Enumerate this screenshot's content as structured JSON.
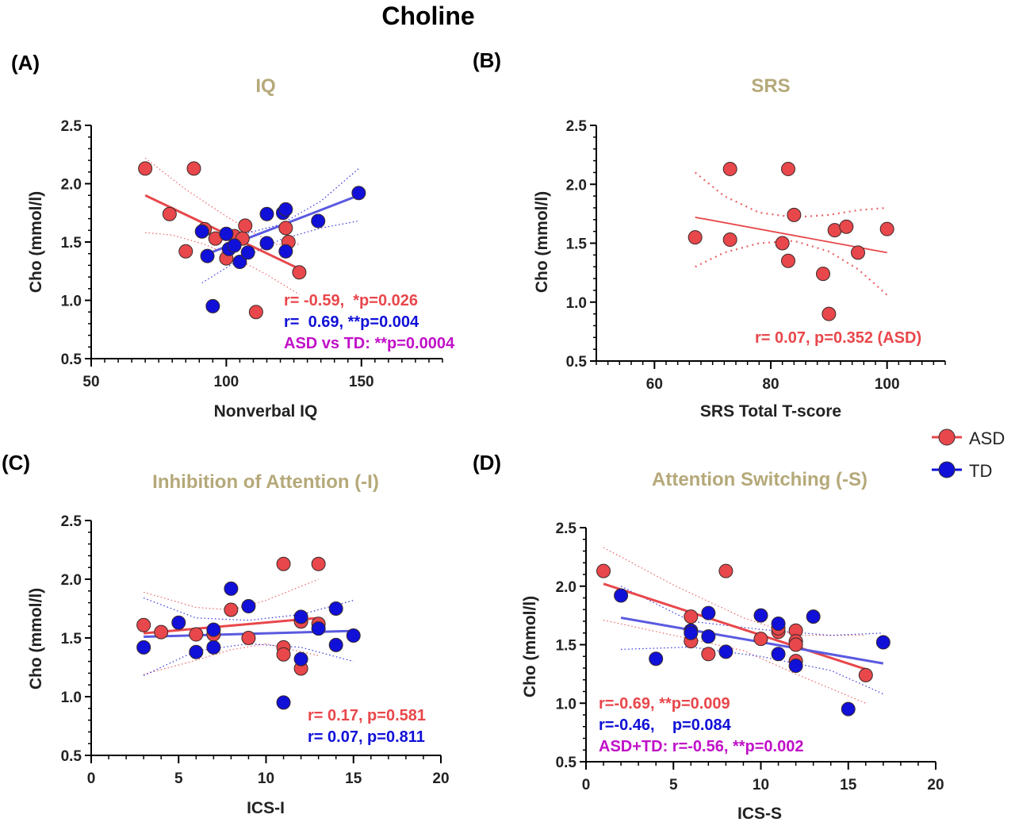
{
  "figure_title": "Choline",
  "colors": {
    "asd": "#e8474b",
    "td": "#1010d8",
    "combined": "#c010c8",
    "panel_title": "#b5a97a"
  },
  "legend": {
    "asd_label": "ASD",
    "td_label": "TD"
  },
  "chart_data": [
    {
      "panel_label": "(A)",
      "type": "scatter",
      "title": "IQ",
      "xlabel": "Nonverbal IQ",
      "ylabel": "Cho (mmol/l)",
      "xlim": [
        50,
        180
      ],
      "ylim": [
        0.5,
        2.5
      ],
      "xticks": [
        50,
        100,
        150
      ],
      "yticks": [
        0.5,
        1.0,
        1.5,
        2.0,
        2.5
      ],
      "x_minor_step": 5,
      "series": [
        {
          "name": "ASD",
          "points": [
            [
              70,
              2.13
            ],
            [
              79,
              1.74
            ],
            [
              85,
              1.42
            ],
            [
              88,
              2.13
            ],
            [
              92,
              1.61
            ],
            [
              96,
              1.53
            ],
            [
              100,
              1.36
            ],
            [
              103,
              1.55
            ],
            [
              106,
              1.53
            ],
            [
              107,
              1.64
            ],
            [
              111,
              0.9
            ],
            [
              122,
              1.62
            ],
            [
              123,
              1.5
            ],
            [
              127,
              1.24
            ]
          ],
          "fit": [
            [
              70,
              1.9
            ],
            [
              127,
              1.27
            ]
          ],
          "ci_upper": [
            [
              70,
              2.22
            ],
            [
              85,
              1.95
            ],
            [
              100,
              1.72
            ],
            [
              110,
              1.58
            ],
            [
              118,
              1.48
            ],
            [
              127,
              1.48
            ]
          ],
          "ci_lower": [
            [
              70,
              1.58
            ],
            [
              80,
              1.56
            ],
            [
              92,
              1.48
            ],
            [
              102,
              1.38
            ],
            [
              115,
              1.22
            ],
            [
              127,
              1.05
            ]
          ]
        },
        {
          "name": "TD",
          "points": [
            [
              91,
              1.59
            ],
            [
              93,
              1.38
            ],
            [
              95,
              0.95
            ],
            [
              100,
              1.57
            ],
            [
              101,
              1.44
            ],
            [
              103,
              1.47
            ],
            [
              105,
              1.33
            ],
            [
              108,
              1.41
            ],
            [
              115,
              1.49
            ],
            [
              115,
              1.74
            ],
            [
              121,
              1.75
            ],
            [
              122,
              1.78
            ],
            [
              122,
              1.42
            ],
            [
              134,
              1.68
            ],
            [
              149,
              1.92
            ]
          ],
          "fit": [
            [
              91,
              1.38
            ],
            [
              149,
              1.9
            ]
          ],
          "ci_upper": [
            [
              91,
              1.55
            ],
            [
              105,
              1.56
            ],
            [
              120,
              1.65
            ],
            [
              135,
              1.85
            ],
            [
              149,
              2.13
            ]
          ],
          "ci_lower": [
            [
              91,
              1.15
            ],
            [
              105,
              1.35
            ],
            [
              120,
              1.52
            ],
            [
              135,
              1.62
            ],
            [
              149,
              1.68
            ]
          ]
        }
      ],
      "annotations": [
        {
          "text": "r= -0.59,  *p=0.026",
          "color_key": "asd"
        },
        {
          "text": "r=  0.69, **p=0.004",
          "color_key": "td"
        },
        {
          "text": "ASD vs TD: **p=0.0004",
          "color_key": "combined"
        }
      ]
    },
    {
      "panel_label": "(B)",
      "type": "scatter",
      "title": "SRS",
      "xlabel": "SRS Total T-score",
      "ylabel": "Cho (mmol/l)",
      "xlim": [
        50,
        110
      ],
      "ylim": [
        0.5,
        2.5
      ],
      "xticks": [
        60,
        80,
        100
      ],
      "yticks": [
        0.5,
        1.0,
        1.5,
        2.0,
        2.5
      ],
      "x_minor_step": 2,
      "series": [
        {
          "name": "ASD",
          "points": [
            [
              67,
              1.55
            ],
            [
              73,
              2.13
            ],
            [
              73,
              1.53
            ],
            [
              82,
              1.5
            ],
            [
              83,
              2.13
            ],
            [
              83,
              1.35
            ],
            [
              84,
              1.74
            ],
            [
              89,
              1.24
            ],
            [
              90,
              0.9
            ],
            [
              91,
              1.61
            ],
            [
              93,
              1.64
            ],
            [
              95,
              1.42
            ],
            [
              100,
              1.62
            ]
          ],
          "fit": [
            [
              67,
              1.72
            ],
            [
              100,
              1.42
            ]
          ],
          "ci_upper": [
            [
              67,
              2.1
            ],
            [
              72,
              1.9
            ],
            [
              78,
              1.76
            ],
            [
              84,
              1.72
            ],
            [
              90,
              1.74
            ],
            [
              95,
              1.78
            ],
            [
              100,
              1.8
            ]
          ],
          "ci_lower": [
            [
              67,
              1.3
            ],
            [
              72,
              1.42
            ],
            [
              78,
              1.5
            ],
            [
              84,
              1.52
            ],
            [
              90,
              1.43
            ],
            [
              95,
              1.28
            ],
            [
              100,
              1.06
            ]
          ]
        }
      ],
      "annotations": [
        {
          "text": "r= 0.07, p=0.352 (ASD)",
          "color_key": "asd"
        }
      ]
    },
    {
      "panel_label": "(C)",
      "type": "scatter",
      "title": "Inhibition of Attention (-I)",
      "xlabel": "ICS-I",
      "ylabel": "Cho (mmol/l)",
      "xlim": [
        0,
        20
      ],
      "ylim": [
        0.5,
        2.5
      ],
      "xticks": [
        0,
        5,
        10,
        15,
        20
      ],
      "yticks": [
        0.5,
        1.0,
        1.5,
        2.0,
        2.5
      ],
      "x_minor_step": 1,
      "series": [
        {
          "name": "ASD",
          "points": [
            [
              3,
              1.61
            ],
            [
              4,
              1.55
            ],
            [
              6,
              1.53
            ],
            [
              7,
              1.53
            ],
            [
              8,
              1.74
            ],
            [
              9,
              1.5
            ],
            [
              11,
              2.13
            ],
            [
              11,
              1.42
            ],
            [
              11,
              1.36
            ],
            [
              12,
              1.64
            ],
            [
              12,
              1.24
            ],
            [
              13,
              1.62
            ],
            [
              13,
              2.13
            ]
          ],
          "fit": [
            [
              3,
              1.54
            ],
            [
              13,
              1.67
            ]
          ],
          "ci_upper": [
            [
              3,
              1.89
            ],
            [
              6,
              1.76
            ],
            [
              8,
              1.74
            ],
            [
              10,
              1.82
            ],
            [
              13,
              2.0
            ]
          ],
          "ci_lower": [
            [
              3,
              1.19
            ],
            [
              6,
              1.31
            ],
            [
              8,
              1.4
            ],
            [
              10,
              1.45
            ],
            [
              13,
              1.35
            ]
          ]
        },
        {
          "name": "TD",
          "points": [
            [
              3,
              1.42
            ],
            [
              5,
              1.63
            ],
            [
              6,
              1.38
            ],
            [
              7,
              1.42
            ],
            [
              7,
              1.57
            ],
            [
              8,
              1.92
            ],
            [
              9,
              1.77
            ],
            [
              11,
              0.95
            ],
            [
              12,
              1.68
            ],
            [
              12,
              1.32
            ],
            [
              13,
              1.58
            ],
            [
              14,
              1.75
            ],
            [
              14,
              1.44
            ],
            [
              15,
              1.52
            ]
          ],
          "fit": [
            [
              3,
              1.51
            ],
            [
              15,
              1.56
            ]
          ],
          "ci_upper": [
            [
              3,
              1.84
            ],
            [
              6,
              1.67
            ],
            [
              9,
              1.65
            ],
            [
              12,
              1.7
            ],
            [
              15,
              1.82
            ]
          ],
          "ci_lower": [
            [
              3,
              1.18
            ],
            [
              6,
              1.39
            ],
            [
              9,
              1.45
            ],
            [
              12,
              1.42
            ],
            [
              15,
              1.3
            ]
          ]
        }
      ],
      "annotations": [
        {
          "text": "r= 0.17, p=0.581",
          "color_key": "asd"
        },
        {
          "text": "r= 0.07, p=0.811",
          "color_key": "td"
        }
      ]
    },
    {
      "panel_label": "(D)",
      "type": "scatter",
      "title": "Attention Switching (-S)",
      "xlabel": "ICS-S",
      "ylabel": "Cho (mmol/l)",
      "xlim": [
        0,
        20
      ],
      "ylim": [
        0.5,
        2.5
      ],
      "xticks": [
        0,
        5,
        10,
        15,
        20
      ],
      "yticks": [
        0.5,
        1.0,
        1.5,
        2.0,
        2.5
      ],
      "x_minor_step": 1,
      "series": [
        {
          "name": "ASD",
          "points": [
            [
              1,
              2.13
            ],
            [
              6,
              1.74
            ],
            [
              6,
              1.53
            ],
            [
              7,
              1.42
            ],
            [
              8,
              2.13
            ],
            [
              10,
              1.55
            ],
            [
              11,
              1.61
            ],
            [
              11,
              1.64
            ],
            [
              12,
              1.62
            ],
            [
              12,
              1.53
            ],
            [
              12,
              1.5
            ],
            [
              12,
              1.36
            ],
            [
              16,
              1.24
            ]
          ],
          "fit": [
            [
              1,
              2.02
            ],
            [
              16,
              1.29
            ]
          ],
          "ci_upper": [
            [
              1,
              2.33
            ],
            [
              5,
              2.01
            ],
            [
              9,
              1.73
            ],
            [
              12,
              1.58
            ],
            [
              16,
              1.58
            ]
          ],
          "ci_lower": [
            [
              1,
              1.71
            ],
            [
              5,
              1.58
            ],
            [
              9,
              1.45
            ],
            [
              12,
              1.25
            ],
            [
              16,
              1.0
            ]
          ]
        },
        {
          "name": "TD",
          "points": [
            [
              2,
              1.92
            ],
            [
              4,
              1.38
            ],
            [
              6,
              1.62
            ],
            [
              6,
              1.6
            ],
            [
              7,
              1.77
            ],
            [
              7,
              1.57
            ],
            [
              8,
              1.44
            ],
            [
              10,
              1.75
            ],
            [
              11,
              1.68
            ],
            [
              11,
              1.42
            ],
            [
              12,
              1.32
            ],
            [
              13,
              1.74
            ],
            [
              15,
              0.95
            ],
            [
              17,
              1.52
            ]
          ],
          "fit": [
            [
              2,
              1.73
            ],
            [
              17,
              1.34
            ]
          ],
          "ci_upper": [
            [
              2,
              2.0
            ],
            [
              6,
              1.7
            ],
            [
              10,
              1.63
            ],
            [
              14,
              1.58
            ],
            [
              17,
              1.6
            ]
          ],
          "ci_lower": [
            [
              2,
              1.46
            ],
            [
              6,
              1.48
            ],
            [
              10,
              1.4
            ],
            [
              14,
              1.28
            ],
            [
              17,
              1.08
            ]
          ]
        }
      ],
      "annotations": [
        {
          "text": "r=-0.69, **p=0.009",
          "color_key": "asd"
        },
        {
          "text": "r=-0.46,    p=0.084",
          "color_key": "td"
        },
        {
          "text": "ASD+TD: r=-0.56, **p=0.002",
          "color_key": "combined"
        }
      ]
    }
  ]
}
